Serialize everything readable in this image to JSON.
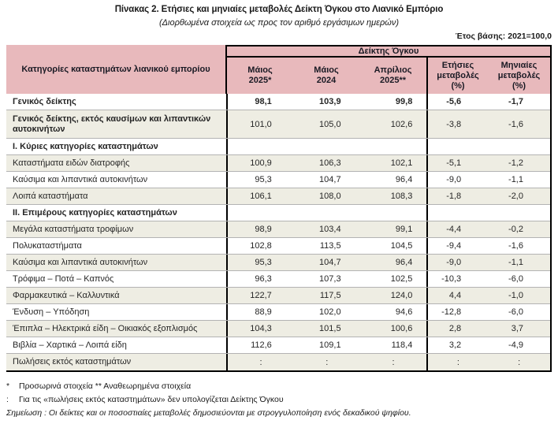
{
  "page": {
    "title": "Πίνακας 2. Ετήσιες και μηνιαίες μεταβολές Δείκτη Όγκου στο Λιανικό Εμπόριο",
    "subtitle": "(Διορθωμένα στοιχεία ως προς τον αριθμό εργάσιμων ημερών)",
    "base_year": "Έτος βάσης: 2021=100,0"
  },
  "colors": {
    "header_bg": "#e8b9bc",
    "stripe_bg": "#eeede3",
    "border": "#000000",
    "grid_line": "#b3b3b3"
  },
  "table": {
    "row_header": "Κατηγορίες καταστημάτων λιανικού εμπορίου",
    "col_group_header": "Δείκτης Όγκου",
    "columns": [
      {
        "lines": [
          "Μάιος",
          "2025*"
        ]
      },
      {
        "lines": [
          "Μάιος",
          "2024"
        ]
      },
      {
        "lines": [
          "Απρίλιος",
          "2025**"
        ]
      },
      {
        "lines": [
          "Ετήσιες",
          "μεταβολές",
          "(%)"
        ]
      },
      {
        "lines": [
          "Μηνιαίες",
          "μεταβολές",
          "(%)"
        ]
      }
    ],
    "rows": [
      {
        "label": "Γενικός δείκτης",
        "bold": true,
        "bold_values": true,
        "striped": false,
        "values": [
          "98,1",
          "103,9",
          "99,8",
          "-5,6",
          "-1,7"
        ]
      },
      {
        "label": "Γενικός δείκτης, εκτός καυσίμων και λιπαντικών αυτοκινήτων",
        "bold": true,
        "tall": true,
        "striped": true,
        "values": [
          "101,0",
          "105,0",
          "102,6",
          "-3,8",
          "-1,6"
        ]
      },
      {
        "label": "Ι. Κύριες κατηγορίες καταστημάτων",
        "bold": true,
        "section": true,
        "striped": false,
        "values": [
          "",
          "",
          "",
          "",
          ""
        ]
      },
      {
        "label": "Καταστήματα ειδών διατροφής",
        "striped": true,
        "values": [
          "100,9",
          "106,3",
          "102,1",
          "-5,1",
          "-1,2"
        ]
      },
      {
        "label": "Καύσιμα και λιπαντικά αυτοκινήτων",
        "striped": false,
        "values": [
          "95,3",
          "104,7",
          "96,4",
          "-9,0",
          "-1,1"
        ]
      },
      {
        "label": "Λοιπά καταστήματα",
        "striped": true,
        "values": [
          "106,1",
          "108,0",
          "108,3",
          "-1,8",
          "-2,0"
        ]
      },
      {
        "label": "ΙΙ. Επιμέρους κατηγορίες καταστημάτων",
        "bold": true,
        "section": true,
        "striped": false,
        "values": [
          "",
          "",
          "",
          "",
          ""
        ]
      },
      {
        "label": "Μεγάλα καταστήματα τροφίμων",
        "striped": true,
        "values": [
          "98,9",
          "103,4",
          "99,1",
          "-4,4",
          "-0,2"
        ]
      },
      {
        "label": "Πολυκαταστήματα",
        "striped": false,
        "values": [
          "102,8",
          "113,5",
          "104,5",
          "-9,4",
          "-1,6"
        ]
      },
      {
        "label": "Καύσιμα και λιπαντικά αυτοκινήτων",
        "striped": true,
        "values": [
          "95,3",
          "104,7",
          "96,4",
          "-9,0",
          "-1,1"
        ]
      },
      {
        "label": "Τρόφιμα – Ποτά – Καπνός",
        "striped": false,
        "values": [
          "96,3",
          "107,3",
          "102,5",
          "-10,3",
          "-6,0"
        ]
      },
      {
        "label": "Φαρμακευτικά – Καλλυντικά",
        "striped": true,
        "values": [
          "122,7",
          "117,5",
          "124,0",
          "4,4",
          "-1,0"
        ]
      },
      {
        "label": "Ένδυση – Υπόδηση",
        "striped": false,
        "values": [
          "88,9",
          "102,0",
          "94,6",
          "-12,8",
          "-6,0"
        ]
      },
      {
        "label": "Έπιπλα – Ηλεκτρικά είδη – Οικιακός εξοπλισμός",
        "striped": true,
        "values": [
          "104,3",
          "101,5",
          "100,6",
          "2,8",
          "3,7"
        ]
      },
      {
        "label": "Βιβλία – Χαρτικά – Λοιπά είδη",
        "striped": false,
        "values": [
          "112,6",
          "109,1",
          "118,4",
          "3,2",
          "-4,9"
        ]
      },
      {
        "label": "Πωλήσεις εκτός καταστημάτων",
        "striped": true,
        "values": [
          ":",
          ":",
          ":",
          ":",
          ":"
        ]
      }
    ]
  },
  "footnotes": [
    {
      "marker": "*",
      "text": "Προσωρινά στοιχεία  **  Αναθεωρημένα στοιχεία",
      "italic": false
    },
    {
      "marker": ":",
      "text": "Για τις «πωλήσεις εκτός καταστημάτων» δεν υπολογίζεται Δείκτης Όγκου",
      "italic": false
    },
    {
      "marker": "",
      "text": "Σημείωση : Οι δείκτες και οι ποσοστιαίες μεταβολές δημοσιεύονται με στρογγυλοποίηση ενός δεκαδικού ψηφίου.",
      "italic": true
    }
  ]
}
